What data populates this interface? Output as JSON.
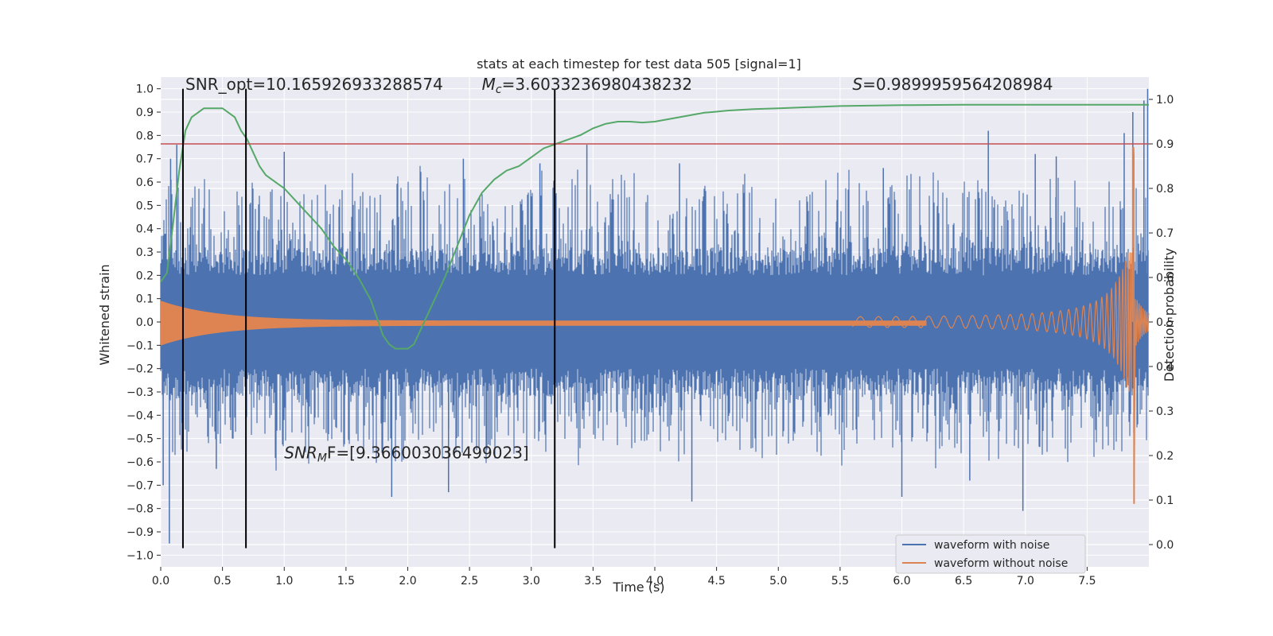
{
  "chart_data": {
    "type": "line",
    "title": "stats at each timestep for test data 505 [signal=1]",
    "xlabel": "Time (s)",
    "ylabel": "Whitened strain",
    "y2label": "Detection probability",
    "xlim": [
      0.0,
      8.0
    ],
    "ylim": [
      -1.05,
      1.05
    ],
    "y2lim": [
      -0.05,
      1.05
    ],
    "xticks": [
      "0.0",
      "0.5",
      "1.0",
      "1.5",
      "2.0",
      "2.5",
      "3.0",
      "3.5",
      "4.0",
      "4.5",
      "5.0",
      "5.5",
      "6.0",
      "6.5",
      "7.0",
      "7.5"
    ],
    "yticks": [
      "-1.0",
      "-0.9",
      "-0.8",
      "-0.7",
      "-0.6",
      "-0.5",
      "-0.4",
      "-0.3",
      "-0.2",
      "-0.1",
      "0.0",
      "0.1",
      "0.2",
      "0.3",
      "0.4",
      "0.5",
      "0.6",
      "0.7",
      "0.8",
      "0.9",
      "1.0"
    ],
    "y2ticks": [
      "0.0",
      "0.1",
      "0.2",
      "0.3",
      "0.4",
      "0.5",
      "0.6",
      "0.7",
      "0.8",
      "0.9",
      "1.0"
    ],
    "grid": true,
    "legend_placement": "lower-right",
    "colors": {
      "noise": "#4c72b0",
      "signal": "#dd8452",
      "probability": "#55a868",
      "threshold": "#c44e52",
      "marker": "#000000",
      "background": "#eaeaf2",
      "grid": "#ffffff"
    },
    "series": [
      {
        "name": "waveform with noise",
        "kind": "noise-band",
        "band_limit": 0.2,
        "spikes": [
          [
            0.02,
            -0.7
          ],
          [
            0.07,
            -0.95
          ],
          [
            0.13,
            0.76
          ],
          [
            0.08,
            0.7
          ],
          [
            0.45,
            -0.63
          ],
          [
            1.0,
            0.73
          ],
          [
            1.87,
            -0.75
          ],
          [
            2.33,
            -0.73
          ],
          [
            2.45,
            0.7
          ],
          [
            3.07,
            0.68
          ],
          [
            3.45,
            0.76
          ],
          [
            4.3,
            -0.77
          ],
          [
            4.2,
            0.68
          ],
          [
            5.85,
            0.66
          ],
          [
            6.0,
            -0.75
          ],
          [
            6.55,
            -0.68
          ],
          [
            6.7,
            0.82
          ],
          [
            6.98,
            -0.81
          ],
          [
            7.08,
            0.72
          ],
          [
            7.25,
            0.71
          ],
          [
            7.8,
            0.81
          ],
          [
            7.87,
            0.9
          ],
          [
            7.96,
            0.95
          ],
          [
            7.99,
            1.0
          ]
        ]
      },
      {
        "name": "waveform without noise",
        "kind": "chirp",
        "merger_time": 7.88,
        "start_amplitude": 0.085,
        "peak_amplitude": 0.75
      },
      {
        "name": "detection probability",
        "axis": "right",
        "x": [
          0.0,
          0.05,
          0.1,
          0.15,
          0.2,
          0.25,
          0.3,
          0.35,
          0.4,
          0.45,
          0.5,
          0.55,
          0.6,
          0.65,
          0.7,
          0.75,
          0.8,
          0.85,
          0.9,
          0.95,
          1.0,
          1.1,
          1.2,
          1.3,
          1.4,
          1.5,
          1.6,
          1.7,
          1.75,
          1.8,
          1.85,
          1.9,
          1.95,
          2.0,
          2.05,
          2.1,
          2.2,
          2.3,
          2.4,
          2.5,
          2.6,
          2.7,
          2.8,
          2.9,
          3.0,
          3.1,
          3.2,
          3.3,
          3.4,
          3.5,
          3.6,
          3.7,
          3.8,
          3.9,
          4.0,
          4.2,
          4.4,
          4.6,
          4.8,
          5.0,
          5.5,
          6.0,
          6.5,
          7.0,
          7.5,
          8.0
        ],
        "y": [
          0.59,
          0.61,
          0.72,
          0.84,
          0.93,
          0.96,
          0.97,
          0.98,
          0.98,
          0.98,
          0.98,
          0.97,
          0.96,
          0.93,
          0.91,
          0.88,
          0.85,
          0.83,
          0.82,
          0.81,
          0.8,
          0.77,
          0.74,
          0.71,
          0.67,
          0.64,
          0.6,
          0.55,
          0.51,
          0.47,
          0.45,
          0.44,
          0.44,
          0.44,
          0.45,
          0.48,
          0.54,
          0.6,
          0.67,
          0.74,
          0.79,
          0.82,
          0.84,
          0.85,
          0.87,
          0.89,
          0.9,
          0.91,
          0.92,
          0.935,
          0.945,
          0.95,
          0.95,
          0.948,
          0.95,
          0.96,
          0.97,
          0.975,
          0.978,
          0.98,
          0.985,
          0.987,
          0.988,
          0.988,
          0.988,
          0.988
        ]
      },
      {
        "name": "threshold",
        "axis": "right",
        "y": 0.9
      },
      {
        "name": "markers",
        "x": [
          0.18,
          0.69,
          3.19
        ]
      }
    ],
    "annotations": [
      {
        "text": "SNR_opt=10.165926933288574",
        "x": 0.2,
        "y": 1.02
      },
      {
        "text": "=3.6033236980438232",
        "math_prefix": "M",
        "math_sub": "c",
        "x": 2.6,
        "y": 1.02
      },
      {
        "text": "=0.9899959564208984",
        "math_prefix": "S",
        "math_sub": "",
        "x": 5.6,
        "y": 1.02
      },
      {
        "text": "F=[9.366003036499023]",
        "math_prefix": "SNR",
        "math_sub": "M",
        "x": 1.0,
        "y": -0.56
      }
    ]
  }
}
